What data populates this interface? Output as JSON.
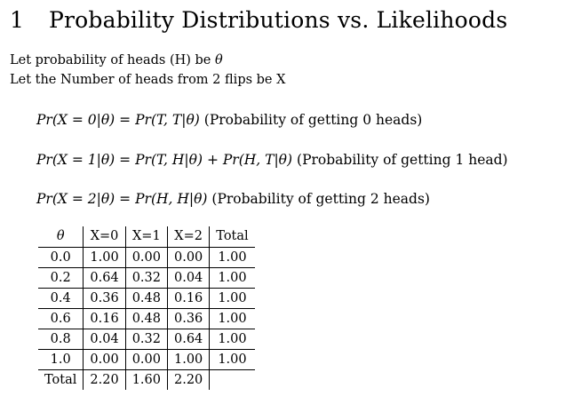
{
  "section": {
    "number": "1",
    "title": "Probability Distributions vs. Likelihoods"
  },
  "intro": {
    "line1_text": "Let probability of heads (H) be ",
    "line1_symbol": "θ",
    "line2_text": "Let the Number of heads from 2 flips be X"
  },
  "equations": [
    {
      "lhs": "Pr(X = 0|θ)",
      "equals": "=",
      "rhs": "Pr(T, T|θ)",
      "note": "(Probability of getting 0 heads)"
    },
    {
      "lhs": "Pr(X = 1|θ)",
      "equals": "=",
      "rhs": "Pr(T, H|θ) + Pr(H, T|θ)",
      "note": "(Probability of getting 1 head)"
    },
    {
      "lhs": "Pr(X = 2|θ)",
      "equals": "=",
      "rhs": "Pr(H, H|θ)",
      "note": "(Probability of getting 2 heads)"
    }
  ],
  "table": {
    "headers": [
      "θ",
      "X=0",
      "X=1",
      "X=2",
      "Total"
    ],
    "rows": [
      [
        "0.0",
        "1.00",
        "0.00",
        "0.00",
        "1.00"
      ],
      [
        "0.2",
        "0.64",
        "0.32",
        "0.04",
        "1.00"
      ],
      [
        "0.4",
        "0.36",
        "0.48",
        "0.16",
        "1.00"
      ],
      [
        "0.6",
        "0.16",
        "0.48",
        "0.36",
        "1.00"
      ],
      [
        "0.8",
        "0.04",
        "0.32",
        "0.64",
        "1.00"
      ],
      [
        "1.0",
        "0.00",
        "0.00",
        "1.00",
        "1.00"
      ]
    ],
    "totals": [
      "Total",
      "2.20",
      "1.60",
      "2.20",
      ""
    ]
  }
}
